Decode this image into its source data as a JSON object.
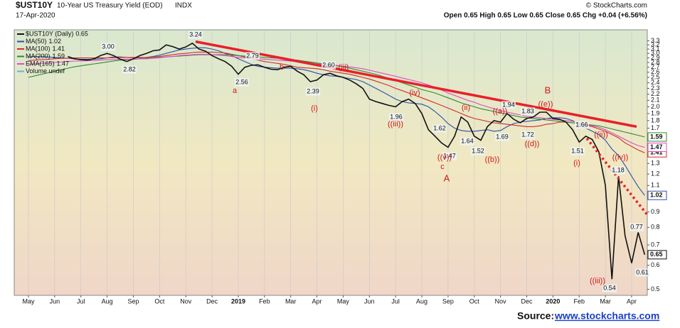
{
  "chart_data": {
    "type": "line",
    "symbol": "$UST10Y",
    "title": "10-Year US Treasury Yield (EOD)",
    "exchange": "INDX",
    "date": "17-Apr-2020",
    "quote": "Open 0.65  High 0.65  Low 0.65  Close 0.65  Chg +0.04 (+6.56%)",
    "copyright": "© StockCharts.com",
    "legend_extra": "Volume undef",
    "source_label": "Source:",
    "source_link": "www.stockcharts.com",
    "log_scale": true,
    "grid": true,
    "ylim": [
      0.48,
      3.4
    ],
    "yticks": [
      3.3,
      3.2,
      3.1,
      {
        "value": 3,
        "label": "3.0"
      },
      2.9,
      2.8,
      2.7,
      2.6,
      2.5,
      2.4,
      2.3,
      2.2,
      2.1,
      {
        "value": 2,
        "label": "2.0"
      },
      1.9,
      1.8,
      1.7,
      1.3,
      1.2,
      1.1,
      0.9,
      0.8,
      0.7,
      0.6,
      0.5
    ],
    "categories": [
      "May",
      null,
      null,
      null,
      "Jun",
      null,
      null,
      null,
      "Jul",
      null,
      null,
      null,
      "Aug",
      null,
      null,
      null,
      "Sep",
      null,
      null,
      null,
      "Oct",
      null,
      null,
      null,
      "Nov",
      null,
      null,
      null,
      "Dec",
      null,
      null,
      null,
      "2019",
      null,
      null,
      null,
      "Feb",
      null,
      null,
      null,
      "Mar",
      null,
      null,
      null,
      "Apr",
      null,
      null,
      null,
      "May",
      null,
      null,
      null,
      "Jun",
      null,
      null,
      null,
      "Jul",
      null,
      null,
      null,
      "Aug",
      null,
      null,
      null,
      "Sep",
      null,
      null,
      null,
      "Oct",
      null,
      null,
      null,
      "Nov",
      null,
      null,
      null,
      "Dec",
      null,
      null,
      null,
      "2020",
      null,
      null,
      null,
      "Feb",
      null,
      null,
      null,
      "Mar",
      null,
      null,
      null,
      "Apr",
      null,
      null
    ],
    "series": [
      {
        "name": "$UST10Y (Daily)",
        "color": "#111111",
        "values": [
          null,
          null,
          null,
          null,
          null,
          null,
          2.93,
          2.88,
          2.86,
          2.85,
          2.88,
          2.95,
          3.0,
          2.95,
          2.87,
          2.82,
          2.88,
          2.95,
          3.0,
          3.06,
          3.08,
          3.2,
          3.16,
          3.1,
          3.15,
          3.24,
          3.1,
          3.05,
          2.95,
          2.88,
          2.82,
          2.72,
          2.56,
          2.7,
          2.74,
          2.75,
          2.7,
          2.66,
          2.65,
          2.7,
          2.72,
          2.62,
          2.55,
          2.42,
          2.45,
          2.55,
          2.58,
          2.53,
          2.5,
          2.45,
          2.38,
          2.3,
          2.12,
          2.08,
          2.05,
          2.02,
          2.0,
          2.08,
          2.12,
          2.05,
          1.9,
          1.68,
          1.6,
          1.52,
          1.47,
          1.6,
          1.85,
          1.78,
          1.6,
          1.55,
          1.72,
          1.8,
          1.78,
          1.9,
          1.82,
          1.77,
          1.83,
          1.85,
          1.92,
          1.92,
          1.83,
          1.82,
          1.78,
          1.68,
          1.53,
          1.6,
          1.56,
          1.42,
          1.1,
          0.54,
          1.18,
          0.75,
          0.61,
          0.77,
          0.65
        ]
      },
      {
        "name": "MA(50)",
        "color": "#2f4fa8",
        "values": [
          2.92,
          2.93,
          2.93,
          2.92,
          2.91,
          2.9,
          2.89,
          2.88,
          2.87,
          2.87,
          2.87,
          2.88,
          2.9,
          2.92,
          2.92,
          2.91,
          2.9,
          2.9,
          2.91,
          2.93,
          2.96,
          3.0,
          3.04,
          3.08,
          3.1,
          3.12,
          3.13,
          3.13,
          3.1,
          3.06,
          3.0,
          2.95,
          2.88,
          2.82,
          2.76,
          2.72,
          2.7,
          2.69,
          2.68,
          2.68,
          2.68,
          2.67,
          2.65,
          2.62,
          2.58,
          2.55,
          2.53,
          2.52,
          2.5,
          2.48,
          2.46,
          2.42,
          2.36,
          2.3,
          2.24,
          2.18,
          2.12,
          2.08,
          2.06,
          2.05,
          2.04,
          2.0,
          1.93,
          1.85,
          1.76,
          1.7,
          1.67,
          1.66,
          1.66,
          1.67,
          1.68,
          1.66,
          1.67,
          1.72,
          1.76,
          1.78,
          1.79,
          1.8,
          1.81,
          1.83,
          1.84,
          1.84,
          1.83,
          1.8,
          1.75,
          1.7,
          1.66,
          1.62,
          1.55,
          1.45,
          1.38,
          1.28,
          1.18,
          1.09,
          1.02
        ]
      },
      {
        "name": "MA(100)",
        "color": "#d42a2a",
        "values": [
          2.84,
          2.85,
          2.86,
          2.87,
          2.88,
          2.89,
          2.89,
          2.9,
          2.9,
          2.9,
          2.9,
          2.9,
          2.9,
          2.9,
          2.91,
          2.91,
          2.91,
          2.91,
          2.91,
          2.92,
          2.93,
          2.95,
          2.97,
          2.99,
          3.0,
          3.02,
          3.03,
          3.03,
          3.03,
          3.02,
          3.01,
          2.98,
          2.95,
          2.92,
          2.88,
          2.85,
          2.82,
          2.8,
          2.78,
          2.76,
          2.73,
          2.7,
          2.69,
          2.68,
          2.67,
          2.65,
          2.62,
          2.6,
          2.58,
          2.56,
          2.53,
          2.5,
          2.47,
          2.43,
          2.39,
          2.35,
          2.3,
          2.26,
          2.22,
          2.18,
          2.14,
          2.1,
          2.06,
          2.02,
          1.98,
          1.94,
          1.9,
          1.86,
          1.83,
          1.81,
          1.79,
          1.77,
          1.76,
          1.75,
          1.74,
          1.73,
          1.72,
          1.72,
          1.73,
          1.75,
          1.76,
          1.78,
          1.78,
          1.77,
          1.76,
          1.74,
          1.72,
          1.69,
          1.66,
          1.62,
          1.58,
          1.52,
          1.48,
          1.44,
          1.41
        ]
      },
      {
        "name": "MA(200)",
        "color": "#2e8b2e",
        "values": [
          2.5,
          2.53,
          2.56,
          2.59,
          2.62,
          2.65,
          2.68,
          2.71,
          2.73,
          2.75,
          2.77,
          2.79,
          2.81,
          2.83,
          2.85,
          2.86,
          2.87,
          2.88,
          2.89,
          2.9,
          2.91,
          2.92,
          2.93,
          2.94,
          2.95,
          2.96,
          2.97,
          2.97,
          2.97,
          2.97,
          2.97,
          2.96,
          2.95,
          2.94,
          2.93,
          2.92,
          2.91,
          2.9,
          2.89,
          2.88,
          2.86,
          2.85,
          2.83,
          2.81,
          2.79,
          2.77,
          2.75,
          2.73,
          2.71,
          2.68,
          2.65,
          2.62,
          2.59,
          2.56,
          2.52,
          2.48,
          2.44,
          2.4,
          2.36,
          2.32,
          2.28,
          2.25,
          2.22,
          2.18,
          2.14,
          2.1,
          2.06,
          2.03,
          2.0,
          1.97,
          1.95,
          1.93,
          1.91,
          1.89,
          1.87,
          1.85,
          1.84,
          1.83,
          1.82,
          1.81,
          1.8,
          1.79,
          1.78,
          1.77,
          1.76,
          1.75,
          1.74,
          1.73,
          1.71,
          1.69,
          1.67,
          1.65,
          1.63,
          1.61,
          1.59
        ]
      },
      {
        "name": "EMA(165)",
        "color": "#e048c8",
        "values": [
          2.76,
          2.77,
          2.78,
          2.79,
          2.8,
          2.81,
          2.82,
          2.83,
          2.83,
          2.84,
          2.84,
          2.85,
          2.86,
          2.86,
          2.87,
          2.87,
          2.87,
          2.88,
          2.88,
          2.89,
          2.9,
          2.92,
          2.93,
          2.95,
          2.96,
          2.97,
          2.98,
          2.98,
          2.97,
          2.96,
          2.95,
          2.93,
          2.91,
          2.9,
          2.89,
          2.88,
          2.87,
          2.86,
          2.85,
          2.84,
          2.83,
          2.82,
          2.8,
          2.78,
          2.77,
          2.76,
          2.75,
          2.74,
          2.72,
          2.71,
          2.69,
          2.67,
          2.64,
          2.61,
          2.58,
          2.55,
          2.52,
          2.49,
          2.46,
          2.43,
          2.4,
          2.36,
          2.32,
          2.27,
          2.22,
          2.18,
          2.14,
          2.1,
          2.07,
          2.03,
          2.0,
          1.97,
          1.94,
          1.92,
          1.9,
          1.88,
          1.86,
          1.85,
          1.84,
          1.83,
          1.82,
          1.81,
          1.8,
          1.79,
          1.77,
          1.75,
          1.73,
          1.71,
          1.68,
          1.64,
          1.6,
          1.56,
          1.52,
          1.49,
          1.47
        ]
      }
    ],
    "point_labels": [
      "3.24",
      "3.00",
      "2.82",
      "2.79",
      "2.56",
      "2.60",
      "2.39",
      "1.96",
      "1.62",
      "1.47",
      "1.64",
      "1.52",
      "1.94",
      "1.69",
      "1.83",
      "1.72",
      "1.66",
      "1.51",
      "1.18",
      "0.77",
      "0.61",
      "0.54"
    ],
    "wave_labels": [
      "a",
      "b",
      "(i)",
      "(iii)",
      "(iv)",
      "((iii))",
      "((v))",
      "c",
      "A",
      "(ii)",
      "((a))",
      "((b))",
      "((d))",
      "((e))",
      "B",
      "(i)",
      "((ii))",
      "((iv))",
      "((iii))"
    ]
  }
}
